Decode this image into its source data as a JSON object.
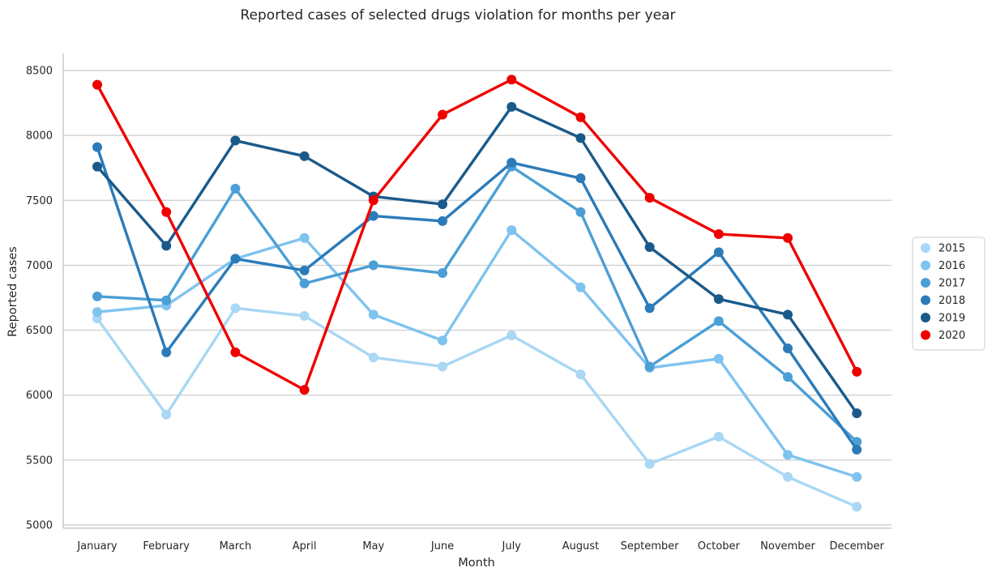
{
  "chart_data": {
    "type": "line",
    "title": "Reported cases of selected drugs violation for months per year",
    "xlabel": "Month",
    "ylabel": "Reported cases",
    "ylim": [
      5000,
      8600
    ],
    "yticks": [
      5000,
      5500,
      6000,
      6500,
      7000,
      7500,
      8000,
      8500
    ],
    "grid": "horizontal",
    "legend_placement": "center-right",
    "categories": [
      "January",
      "February",
      "March",
      "April",
      "May",
      "June",
      "July",
      "August",
      "September",
      "October",
      "November",
      "December"
    ],
    "series": [
      {
        "name": "2015",
        "color": "#a9d7f4",
        "values": [
          6590,
          5850,
          6670,
          6610,
          6290,
          6220,
          6460,
          6160,
          5470,
          5680,
          5370,
          5140
        ]
      },
      {
        "name": "2016",
        "color": "#7fc3ef",
        "values": [
          6640,
          6690,
          7050,
          7210,
          6620,
          6420,
          7270,
          6830,
          6210,
          6280,
          5540,
          5370
        ]
      },
      {
        "name": "2017",
        "color": "#4b9fd5",
        "values": [
          6760,
          6730,
          7590,
          6860,
          7000,
          6940,
          7760,
          7410,
          6220,
          6570,
          6140,
          5640
        ]
      },
      {
        "name": "2018",
        "color": "#2b7bb9",
        "values": [
          7910,
          6330,
          7050,
          6960,
          7380,
          7340,
          7790,
          7670,
          6670,
          7100,
          6360,
          5580
        ]
      },
      {
        "name": "2019",
        "color": "#1a5a8a",
        "values": [
          7760,
          7150,
          7960,
          7840,
          7530,
          7470,
          8220,
          7980,
          7140,
          6740,
          6620,
          5860
        ]
      },
      {
        "name": "2020",
        "color": "#ee0000",
        "values": [
          8390,
          7410,
          6330,
          6040,
          7500,
          8160,
          8430,
          8140,
          7520,
          7240,
          7210,
          6180
        ]
      }
    ]
  }
}
